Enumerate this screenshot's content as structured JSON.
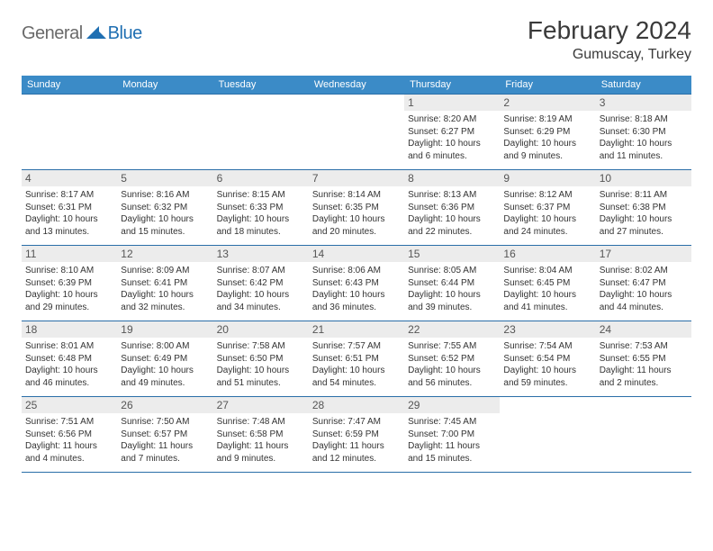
{
  "logo": {
    "general": "General",
    "blue": "Blue"
  },
  "title": "February 2024",
  "location": "Gumuscay, Turkey",
  "dayHeaders": [
    "Sunday",
    "Monday",
    "Tuesday",
    "Wednesday",
    "Thursday",
    "Friday",
    "Saturday"
  ],
  "colors": {
    "headerBg": "#3b8bc7",
    "headerText": "#ffffff",
    "border": "#2a6ea8",
    "dayNumBg": "#ececec",
    "logoBlue": "#1f6fb2",
    "logoGray": "#6a6a6a"
  },
  "weeks": [
    [
      {
        "n": "",
        "sr": "",
        "ss": "",
        "dl": ""
      },
      {
        "n": "",
        "sr": "",
        "ss": "",
        "dl": ""
      },
      {
        "n": "",
        "sr": "",
        "ss": "",
        "dl": ""
      },
      {
        "n": "",
        "sr": "",
        "ss": "",
        "dl": ""
      },
      {
        "n": "1",
        "sr": "Sunrise: 8:20 AM",
        "ss": "Sunset: 6:27 PM",
        "dl": "Daylight: 10 hours and 6 minutes."
      },
      {
        "n": "2",
        "sr": "Sunrise: 8:19 AM",
        "ss": "Sunset: 6:29 PM",
        "dl": "Daylight: 10 hours and 9 minutes."
      },
      {
        "n": "3",
        "sr": "Sunrise: 8:18 AM",
        "ss": "Sunset: 6:30 PM",
        "dl": "Daylight: 10 hours and 11 minutes."
      }
    ],
    [
      {
        "n": "4",
        "sr": "Sunrise: 8:17 AM",
        "ss": "Sunset: 6:31 PM",
        "dl": "Daylight: 10 hours and 13 minutes."
      },
      {
        "n": "5",
        "sr": "Sunrise: 8:16 AM",
        "ss": "Sunset: 6:32 PM",
        "dl": "Daylight: 10 hours and 15 minutes."
      },
      {
        "n": "6",
        "sr": "Sunrise: 8:15 AM",
        "ss": "Sunset: 6:33 PM",
        "dl": "Daylight: 10 hours and 18 minutes."
      },
      {
        "n": "7",
        "sr": "Sunrise: 8:14 AM",
        "ss": "Sunset: 6:35 PM",
        "dl": "Daylight: 10 hours and 20 minutes."
      },
      {
        "n": "8",
        "sr": "Sunrise: 8:13 AM",
        "ss": "Sunset: 6:36 PM",
        "dl": "Daylight: 10 hours and 22 minutes."
      },
      {
        "n": "9",
        "sr": "Sunrise: 8:12 AM",
        "ss": "Sunset: 6:37 PM",
        "dl": "Daylight: 10 hours and 24 minutes."
      },
      {
        "n": "10",
        "sr": "Sunrise: 8:11 AM",
        "ss": "Sunset: 6:38 PM",
        "dl": "Daylight: 10 hours and 27 minutes."
      }
    ],
    [
      {
        "n": "11",
        "sr": "Sunrise: 8:10 AM",
        "ss": "Sunset: 6:39 PM",
        "dl": "Daylight: 10 hours and 29 minutes."
      },
      {
        "n": "12",
        "sr": "Sunrise: 8:09 AM",
        "ss": "Sunset: 6:41 PM",
        "dl": "Daylight: 10 hours and 32 minutes."
      },
      {
        "n": "13",
        "sr": "Sunrise: 8:07 AM",
        "ss": "Sunset: 6:42 PM",
        "dl": "Daylight: 10 hours and 34 minutes."
      },
      {
        "n": "14",
        "sr": "Sunrise: 8:06 AM",
        "ss": "Sunset: 6:43 PM",
        "dl": "Daylight: 10 hours and 36 minutes."
      },
      {
        "n": "15",
        "sr": "Sunrise: 8:05 AM",
        "ss": "Sunset: 6:44 PM",
        "dl": "Daylight: 10 hours and 39 minutes."
      },
      {
        "n": "16",
        "sr": "Sunrise: 8:04 AM",
        "ss": "Sunset: 6:45 PM",
        "dl": "Daylight: 10 hours and 41 minutes."
      },
      {
        "n": "17",
        "sr": "Sunrise: 8:02 AM",
        "ss": "Sunset: 6:47 PM",
        "dl": "Daylight: 10 hours and 44 minutes."
      }
    ],
    [
      {
        "n": "18",
        "sr": "Sunrise: 8:01 AM",
        "ss": "Sunset: 6:48 PM",
        "dl": "Daylight: 10 hours and 46 minutes."
      },
      {
        "n": "19",
        "sr": "Sunrise: 8:00 AM",
        "ss": "Sunset: 6:49 PM",
        "dl": "Daylight: 10 hours and 49 minutes."
      },
      {
        "n": "20",
        "sr": "Sunrise: 7:58 AM",
        "ss": "Sunset: 6:50 PM",
        "dl": "Daylight: 10 hours and 51 minutes."
      },
      {
        "n": "21",
        "sr": "Sunrise: 7:57 AM",
        "ss": "Sunset: 6:51 PM",
        "dl": "Daylight: 10 hours and 54 minutes."
      },
      {
        "n": "22",
        "sr": "Sunrise: 7:55 AM",
        "ss": "Sunset: 6:52 PM",
        "dl": "Daylight: 10 hours and 56 minutes."
      },
      {
        "n": "23",
        "sr": "Sunrise: 7:54 AM",
        "ss": "Sunset: 6:54 PM",
        "dl": "Daylight: 10 hours and 59 minutes."
      },
      {
        "n": "24",
        "sr": "Sunrise: 7:53 AM",
        "ss": "Sunset: 6:55 PM",
        "dl": "Daylight: 11 hours and 2 minutes."
      }
    ],
    [
      {
        "n": "25",
        "sr": "Sunrise: 7:51 AM",
        "ss": "Sunset: 6:56 PM",
        "dl": "Daylight: 11 hours and 4 minutes."
      },
      {
        "n": "26",
        "sr": "Sunrise: 7:50 AM",
        "ss": "Sunset: 6:57 PM",
        "dl": "Daylight: 11 hours and 7 minutes."
      },
      {
        "n": "27",
        "sr": "Sunrise: 7:48 AM",
        "ss": "Sunset: 6:58 PM",
        "dl": "Daylight: 11 hours and 9 minutes."
      },
      {
        "n": "28",
        "sr": "Sunrise: 7:47 AM",
        "ss": "Sunset: 6:59 PM",
        "dl": "Daylight: 11 hours and 12 minutes."
      },
      {
        "n": "29",
        "sr": "Sunrise: 7:45 AM",
        "ss": "Sunset: 7:00 PM",
        "dl": "Daylight: 11 hours and 15 minutes."
      },
      {
        "n": "",
        "sr": "",
        "ss": "",
        "dl": ""
      },
      {
        "n": "",
        "sr": "",
        "ss": "",
        "dl": ""
      }
    ]
  ]
}
